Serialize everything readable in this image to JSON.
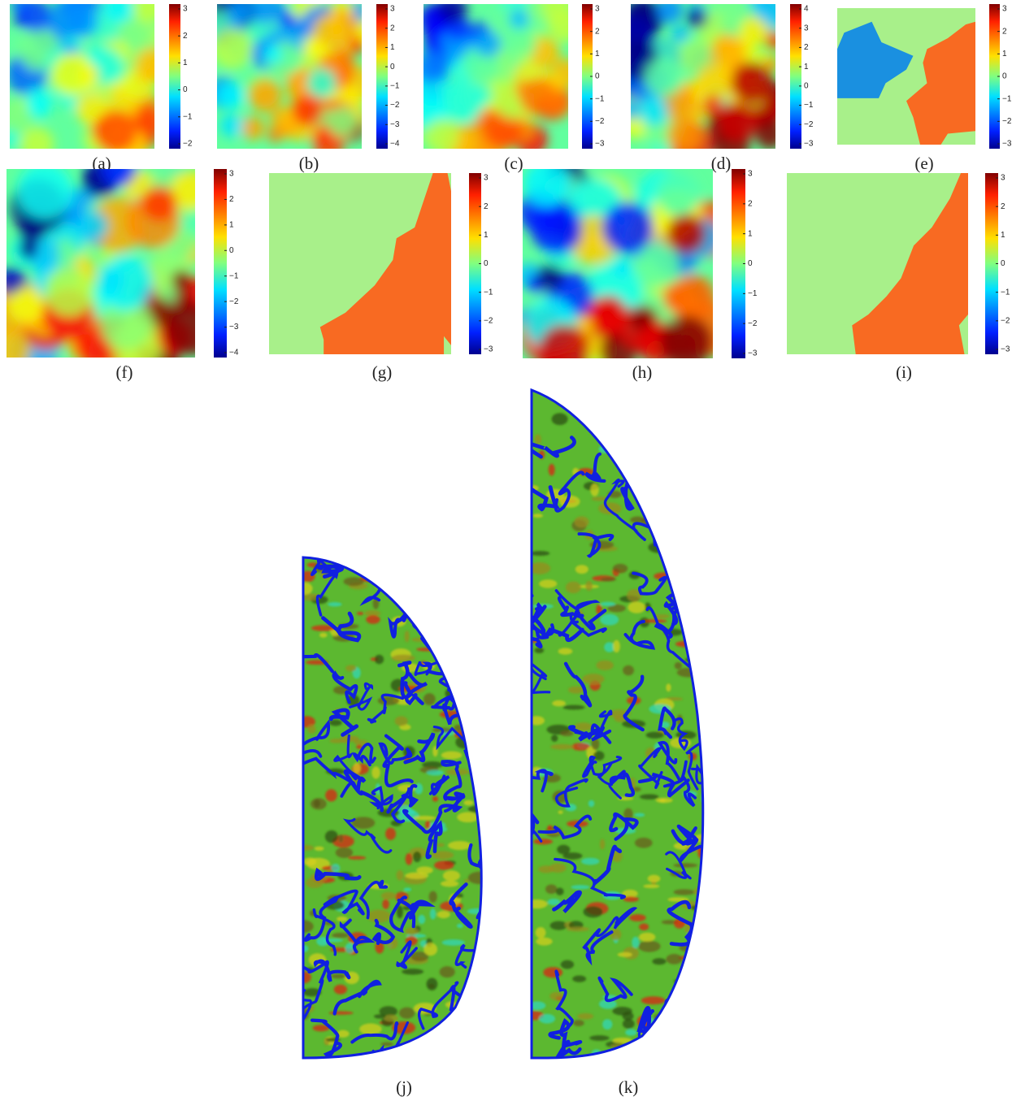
{
  "panels": [
    {
      "label": "(a)",
      "colorbar_ticks": [
        "3",
        "2",
        "1",
        "0",
        "−1",
        "−2"
      ]
    },
    {
      "label": "(b)",
      "colorbar_ticks": [
        "3",
        "2",
        "1",
        "0",
        "−1",
        "−2",
        "−3",
        "−4"
      ]
    },
    {
      "label": "(c)",
      "colorbar_ticks": [
        "3",
        "2",
        "1",
        "0",
        "−1",
        "−2",
        "−3"
      ]
    },
    {
      "label": "(d)",
      "colorbar_ticks": [
        "4",
        "3",
        "2",
        "1",
        "0",
        "−1",
        "−2",
        "−3"
      ]
    },
    {
      "label": "(e)",
      "colorbar_ticks": [
        "3",
        "2",
        "1",
        "0",
        "−1",
        "−2",
        "−3"
      ]
    },
    {
      "label": "(f)",
      "colorbar_ticks": [
        "3",
        "2",
        "1",
        "0",
        "−1",
        "−2",
        "−3",
        "−4"
      ]
    },
    {
      "label": "(g)",
      "colorbar_ticks": [
        "3",
        "2",
        "1",
        "0",
        "−1",
        "−2",
        "−3"
      ]
    },
    {
      "label": "(h)",
      "colorbar_ticks": [
        "3",
        "2",
        "1",
        "0",
        "−1",
        "−2",
        "−3"
      ]
    },
    {
      "label": "(i)",
      "colorbar_ticks": [
        "3",
        "2",
        "1",
        "0",
        "−1",
        "−2",
        "−3"
      ]
    }
  ],
  "brains": [
    {
      "label": "(j)"
    },
    {
      "label": "(k)"
    }
  ]
}
